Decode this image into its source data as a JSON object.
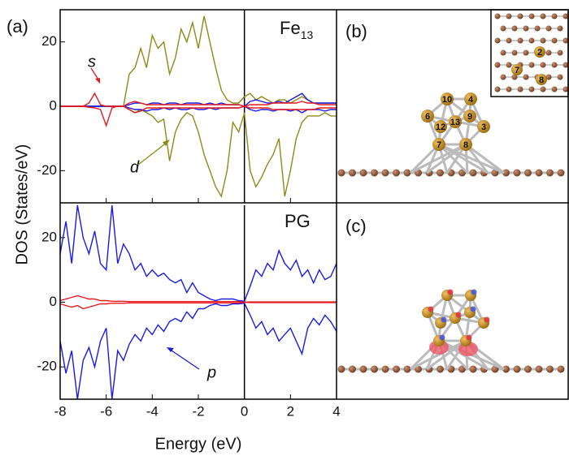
{
  "chart_data": [
    {
      "type": "line",
      "panel_label": "(a)",
      "annotation": "Fe",
      "annotation_sub": "13",
      "y_label": "DOS (States/eV)",
      "x": [
        -8,
        -7.75,
        -7.5,
        -7.25,
        -7,
        -6.75,
        -6.5,
        -6.25,
        -6,
        -5.75,
        -5.5,
        -5.25,
        -5,
        -4.75,
        -4.5,
        -4.25,
        -4,
        -3.75,
        -3.5,
        -3.25,
        -3,
        -2.75,
        -2.5,
        -2.25,
        -2,
        -1.75,
        -1.5,
        -1.25,
        -1,
        -0.75,
        -0.5,
        -0.25,
        0,
        0.25,
        0.5,
        0.75,
        1,
        1.25,
        1.5,
        1.75,
        2,
        2.25,
        2.5,
        2.75,
        3,
        3.25,
        3.5,
        3.75,
        4
      ],
      "xlim": [
        -8,
        4
      ],
      "ylim": [
        -30,
        30
      ],
      "yticks": [
        -20,
        0,
        20
      ],
      "series": [
        {
          "name": "d",
          "color": "#8b8b1a",
          "values": [
            0,
            0,
            0,
            0,
            0,
            0,
            0,
            0,
            0,
            0,
            0,
            0,
            10,
            12,
            18,
            12,
            22,
            18,
            20,
            10,
            15,
            24,
            20,
            26,
            18,
            28,
            20,
            12,
            5,
            2,
            1,
            1,
            3,
            4,
            2,
            3,
            2,
            1,
            2,
            2,
            1,
            2,
            3,
            2,
            1,
            1,
            1,
            1,
            1
          ],
          "values_down": [
            0,
            0,
            0,
            0,
            0,
            0,
            0,
            0,
            0,
            0,
            0,
            0,
            -1,
            -2,
            -1,
            -2,
            -3,
            -5,
            -4,
            -17,
            -8,
            -4,
            -2,
            -3,
            -8,
            -15,
            -20,
            -25,
            -28,
            -20,
            -5,
            -8,
            -2,
            -20,
            -25,
            -22,
            -18,
            -15,
            -10,
            -28,
            -20,
            -10,
            -5,
            -3,
            -3,
            -3,
            -2,
            -3,
            -3
          ]
        },
        {
          "color": "#1a1ae6",
          "values": [
            0,
            0,
            0,
            0,
            0,
            0,
            0,
            0,
            0,
            0,
            0,
            0,
            0.5,
            1,
            1,
            0.5,
            1,
            1,
            0.5,
            1,
            1,
            0.5,
            1,
            1,
            1,
            0.5,
            1,
            0.5,
            1,
            0.5,
            0.5,
            0.5,
            0,
            1.5,
            2,
            1.5,
            1,
            1,
            1.5,
            1,
            2,
            3,
            4,
            2,
            1,
            1,
            1,
            1,
            1
          ],
          "values_down": [
            0,
            0,
            0,
            0,
            0,
            0,
            0,
            0,
            0,
            0,
            0,
            0,
            -0.5,
            -1,
            -1,
            -1.5,
            -1,
            -1,
            -0.5,
            -1,
            -0.5,
            -1,
            -1,
            -0.5,
            -1,
            -1,
            -0.5,
            -1,
            -0.5,
            -0.5,
            -0.5,
            -0.5,
            0,
            -1,
            -1.5,
            -1,
            -1,
            -1.5,
            -1,
            -1,
            -1.5,
            -1,
            -2,
            -1,
            -1,
            -1,
            -1.5,
            -1,
            -1
          ]
        },
        {
          "name": "s",
          "color": "#e8191e",
          "values": [
            0,
            0,
            0,
            0,
            0,
            1,
            4,
            0.5,
            0,
            0,
            0,
            0,
            1,
            1.5,
            1,
            0.5,
            0.5,
            0.5,
            0.5,
            0.5,
            0.5,
            0.5,
            0.5,
            0.5,
            0.5,
            0.5,
            0.5,
            0.5,
            0.5,
            0.5,
            0.5,
            0.5,
            0,
            0.5,
            0.5,
            0.5,
            0.5,
            1,
            1,
            1,
            1,
            1,
            1.5,
            1,
            1,
            0.5,
            0.5,
            0.5,
            0.5
          ],
          "values_down": [
            0,
            0,
            0,
            0,
            0,
            -0.3,
            -0.5,
            -1,
            -6,
            -0.5,
            0,
            0,
            -1,
            -2,
            -1.5,
            -0.5,
            -0.5,
            -0.5,
            -0.5,
            -0.5,
            -0.5,
            -0.5,
            -0.5,
            -0.5,
            -0.5,
            -0.5,
            -0.5,
            -0.5,
            -0.5,
            -0.5,
            -0.5,
            -0.5,
            0,
            -0.5,
            -0.5,
            -0.5,
            -0.5,
            -1,
            -1,
            -1,
            -1,
            -1,
            -1,
            -1,
            -1,
            -0.5,
            -0.5,
            -0.5,
            -0.5
          ]
        }
      ]
    },
    {
      "type": "line",
      "annotation": "PG",
      "x_label": "Energy (eV)",
      "x": [
        -8,
        -7.75,
        -7.5,
        -7.25,
        -7,
        -6.75,
        -6.5,
        -6.25,
        -6,
        -5.75,
        -5.5,
        -5.25,
        -5,
        -4.75,
        -4.5,
        -4.25,
        -4,
        -3.75,
        -3.5,
        -3.25,
        -3,
        -2.75,
        -2.5,
        -2.25,
        -2,
        -1.75,
        -1.5,
        -1.25,
        -1,
        -0.75,
        -0.5,
        -0.25,
        0,
        0.25,
        0.5,
        0.75,
        1,
        1.25,
        1.5,
        1.75,
        2,
        2.25,
        2.5,
        2.75,
        3,
        3.25,
        3.5,
        3.75,
        4
      ],
      "xlim": [
        -8,
        4
      ],
      "xticks": [
        -8,
        -6,
        -4,
        -2,
        0,
        2,
        4
      ],
      "ylim": [
        -30,
        30
      ],
      "yticks": [
        -20,
        0,
        20
      ],
      "series": [
        {
          "name": "p",
          "color": "#1a1ae6",
          "values": [
            15,
            25,
            12,
            30,
            20,
            15,
            22,
            12,
            10,
            30,
            12,
            18,
            15,
            10,
            12,
            8,
            10,
            8,
            9,
            7,
            6,
            7,
            3,
            6,
            3,
            2,
            1,
            0.5,
            1,
            1,
            1,
            0.5,
            0.3,
            5,
            10,
            8,
            12,
            10,
            16,
            12,
            10,
            13,
            8,
            10,
            6,
            10,
            7,
            8,
            12
          ],
          "values_down": [
            -12,
            -22,
            -15,
            -30,
            -18,
            -14,
            -20,
            -12,
            -8,
            -30,
            -15,
            -18,
            -13,
            -10,
            -12,
            -8,
            -10,
            -7,
            -9,
            -6,
            -5,
            -6,
            -3,
            -5,
            -2,
            -2,
            -1,
            -0.5,
            -1,
            -1,
            -0.5,
            -0.5,
            -0.3,
            -4,
            -8,
            -6,
            -10,
            -8,
            -12,
            -10,
            -8,
            -12,
            -16,
            -8,
            -5,
            -7,
            -4,
            -6,
            -9
          ]
        },
        {
          "color": "#e8191e",
          "values": [
            0.5,
            1,
            1.5,
            2,
            1.5,
            1,
            1,
            0.5,
            0.5,
            0.3,
            0.3,
            0.3,
            0.2,
            0.2,
            0.2,
            0.2,
            0.2,
            0.2,
            0.2,
            0.2,
            0.2,
            0.2,
            0.2,
            0.2,
            0.2,
            0.2,
            0.2,
            0.2,
            0.2,
            0.2,
            0.2,
            0.2,
            0,
            0.1,
            0.1,
            0.1,
            0.1,
            0.1,
            0.1,
            0.1,
            0.1,
            0.1,
            0.1,
            0.1,
            0.1,
            0.1,
            0.1,
            0.1,
            0.1
          ],
          "values_down": [
            -0.5,
            -1,
            -1.5,
            -1,
            -2,
            -1.5,
            -1,
            -0.5,
            -0.5,
            -0.3,
            -0.3,
            -0.3,
            -0.2,
            -0.2,
            -0.2,
            -0.2,
            -0.2,
            -0.2,
            -0.2,
            -0.2,
            -0.2,
            -0.2,
            -0.2,
            -0.2,
            -0.2,
            -0.2,
            -0.2,
            -0.2,
            -0.2,
            -0.2,
            -0.2,
            -0.2,
            0,
            -0.1,
            -0.1,
            -0.1,
            -0.1,
            -0.1,
            -0.1,
            -0.1,
            -0.1,
            -0.1,
            -0.1,
            -0.1,
            -0.1,
            -0.1,
            -0.1,
            -0.1,
            -0.1
          ]
        }
      ]
    }
  ],
  "structures": [
    {
      "label": "(b)",
      "atoms": [
        "10",
        "4",
        "6",
        "12",
        "13",
        "9",
        "3",
        "7",
        "8"
      ],
      "inset_atoms": [
        "2",
        "7",
        "8"
      ]
    },
    {
      "label": "(c)"
    }
  ]
}
